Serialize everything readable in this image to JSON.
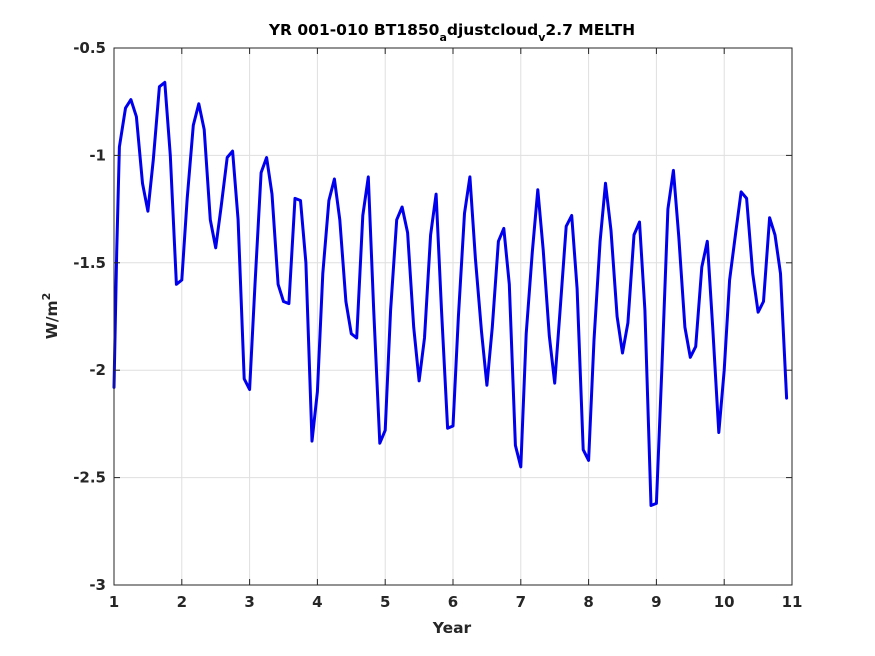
{
  "chart_data": {
    "type": "line",
    "title": {
      "part1": "YR 001-010 BT1850",
      "sub1": "a",
      "part2": "djustcloud",
      "sub2": "v",
      "part3": "2.7 MELTH"
    },
    "xlabel": "Year",
    "ylabel": {
      "base": "W/m",
      "sup": "2"
    },
    "xlim": [
      1,
      11
    ],
    "ylim": [
      -3,
      -0.5
    ],
    "xticks": [
      1,
      2,
      3,
      4,
      5,
      6,
      7,
      8,
      9,
      10,
      11
    ],
    "yticks": [
      -3,
      -2.5,
      -2,
      -1.5,
      -1,
      -0.5
    ],
    "xtick_labels": [
      "1",
      "2",
      "3",
      "4",
      "5",
      "6",
      "7",
      "8",
      "9",
      "10",
      "11"
    ],
    "ytick_labels": [
      "-3",
      "-2.5",
      "-2",
      "-1.5",
      "-1",
      "-0.5"
    ],
    "grid": true,
    "series_color": "#0000ee",
    "series": [
      {
        "x": [
          1.0,
          1.04,
          1.08,
          1.17,
          1.25,
          1.33,
          1.42,
          1.5,
          1.58,
          1.67,
          1.75,
          1.83,
          1.92,
          2.0,
          2.08,
          2.17,
          2.25,
          2.33,
          2.42,
          2.5,
          2.58,
          2.67,
          2.75,
          2.83,
          2.92,
          3.0,
          3.08,
          3.17,
          3.25,
          3.33,
          3.42,
          3.5,
          3.58,
          3.67,
          3.75,
          3.83,
          3.92,
          4.0,
          4.08,
          4.17,
          4.25,
          4.33,
          4.42,
          4.5,
          4.58,
          4.67,
          4.75,
          4.83,
          4.92,
          5.0,
          5.08,
          5.17,
          5.25,
          5.33,
          5.42,
          5.5,
          5.58,
          5.67,
          5.75,
          5.83,
          5.92,
          6.0,
          6.08,
          6.17,
          6.25,
          6.33,
          6.42,
          6.5,
          6.58,
          6.67,
          6.75,
          6.83,
          6.92,
          7.0,
          7.08,
          7.17,
          7.25,
          7.33,
          7.42,
          7.5,
          7.58,
          7.67,
          7.75,
          7.83,
          7.92,
          8.0,
          8.08,
          8.17,
          8.25,
          8.33,
          8.42,
          8.5,
          8.58,
          8.67,
          8.75,
          8.83,
          8.92,
          9.0,
          9.08,
          9.17,
          9.25,
          9.33,
          9.42,
          9.5,
          9.58,
          9.67,
          9.75,
          9.83,
          9.92,
          10.0,
          10.08,
          10.17,
          10.25,
          10.33,
          10.42,
          10.5,
          10.58,
          10.67,
          10.75,
          10.83,
          10.92
        ],
        "y": [
          -2.08,
          -1.45,
          -0.96,
          -0.78,
          -0.74,
          -0.82,
          -1.13,
          -1.26,
          -1.02,
          -0.68,
          -0.66,
          -1.0,
          -1.6,
          -1.58,
          -1.2,
          -0.86,
          -0.76,
          -0.88,
          -1.3,
          -1.43,
          -1.24,
          -1.01,
          -0.98,
          -1.3,
          -2.04,
          -2.09,
          -1.6,
          -1.08,
          -1.01,
          -1.18,
          -1.6,
          -1.68,
          -1.69,
          -1.2,
          -1.21,
          -1.5,
          -2.33,
          -2.1,
          -1.55,
          -1.21,
          -1.11,
          -1.3,
          -1.68,
          -1.83,
          -1.85,
          -1.28,
          -1.1,
          -1.72,
          -2.34,
          -2.28,
          -1.72,
          -1.3,
          -1.24,
          -1.36,
          -1.8,
          -2.05,
          -1.85,
          -1.37,
          -1.18,
          -1.72,
          -2.27,
          -2.26,
          -1.75,
          -1.27,
          -1.1,
          -1.48,
          -1.82,
          -2.07,
          -1.8,
          -1.4,
          -1.34,
          -1.6,
          -2.35,
          -2.45,
          -1.83,
          -1.45,
          -1.16,
          -1.44,
          -1.84,
          -2.06,
          -1.72,
          -1.33,
          -1.28,
          -1.62,
          -2.37,
          -2.42,
          -1.86,
          -1.4,
          -1.13,
          -1.35,
          -1.75,
          -1.92,
          -1.78,
          -1.37,
          -1.31,
          -1.72,
          -2.63,
          -2.62,
          -2.0,
          -1.25,
          -1.07,
          -1.38,
          -1.8,
          -1.94,
          -1.89,
          -1.52,
          -1.4,
          -1.8,
          -2.29,
          -2.0,
          -1.58,
          -1.36,
          -1.17,
          -1.2,
          -1.55,
          -1.73,
          -1.68,
          -1.29,
          -1.37,
          -1.55,
          -2.13
        ]
      }
    ]
  }
}
